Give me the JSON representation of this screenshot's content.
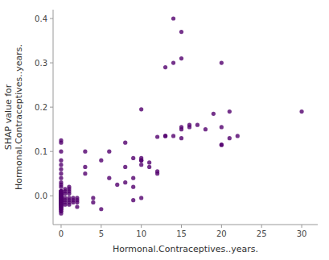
{
  "chart_data": {
    "type": "scatter",
    "xlabel": "Hormonal.Contraceptives..years.",
    "ylabel": "SHAP value for\nHormonal.Contraceptives..years.",
    "color": "#52006e",
    "xlim": [
      -1,
      32
    ],
    "ylim": [
      -0.065,
      0.42
    ],
    "xticks": [
      0,
      5,
      10,
      15,
      20,
      25,
      30
    ],
    "yticks": [
      {
        "value": 0.0,
        "label": "0.0"
      },
      0.1,
      0.2,
      0.3,
      0.4
    ],
    "x": [
      0,
      0,
      0,
      0,
      0,
      0,
      0,
      0,
      0,
      0,
      0,
      0,
      0,
      0,
      0,
      0,
      0,
      0,
      0,
      0,
      0,
      0,
      0,
      0,
      0,
      0,
      0,
      0,
      0,
      0,
      0,
      0,
      0,
      0,
      0,
      0,
      0,
      0,
      0,
      0,
      0,
      0,
      0,
      0,
      0,
      0,
      0,
      0,
      0,
      0,
      0,
      0,
      0,
      0,
      0,
      0,
      0,
      0,
      0,
      0,
      0,
      0,
      0,
      0,
      0,
      0,
      0,
      0,
      0,
      0,
      0,
      0,
      0,
      0,
      0,
      0,
      0,
      0,
      0.5,
      0.5,
      0.5,
      0.5,
      0.5,
      0.5,
      0.5,
      1,
      1,
      1,
      1,
      1,
      1,
      1,
      1,
      1.5,
      1.5,
      1.5,
      2,
      2,
      2,
      2,
      3,
      3,
      3,
      4,
      4,
      5,
      5,
      6,
      6,
      7,
      8,
      8,
      8,
      9,
      9,
      9,
      9,
      10,
      10,
      10,
      10,
      10,
      10,
      11,
      11,
      12,
      12,
      12,
      13,
      13,
      13,
      14,
      14,
      14,
      15,
      15,
      15,
      15,
      15,
      16,
      16,
      17,
      18,
      19,
      20,
      20,
      20,
      20,
      21,
      21,
      22,
      30
    ],
    "values": [
      0.0,
      0.0,
      0.0,
      0.0,
      0.0,
      0.0,
      0.0,
      0.0,
      0.0,
      0.0,
      0.0,
      0.0,
      0.0,
      0.0,
      0.0,
      -0.005,
      -0.005,
      -0.005,
      -0.005,
      -0.005,
      -0.005,
      -0.005,
      -0.005,
      -0.005,
      -0.005,
      -0.01,
      -0.01,
      -0.01,
      -0.01,
      -0.01,
      -0.01,
      -0.01,
      -0.01,
      -0.01,
      -0.01,
      -0.015,
      -0.015,
      -0.015,
      -0.015,
      -0.015,
      -0.015,
      -0.015,
      -0.015,
      -0.02,
      -0.02,
      -0.02,
      -0.02,
      -0.02,
      -0.025,
      -0.025,
      -0.025,
      -0.025,
      -0.03,
      -0.03,
      -0.03,
      -0.035,
      -0.035,
      -0.04,
      0.005,
      0.005,
      0.005,
      0.005,
      0.005,
      0.01,
      0.01,
      0.01,
      0.01,
      0.02,
      0.025,
      0.03,
      0.04,
      0.05,
      0.06,
      0.07,
      0.08,
      0.1,
      0.12,
      0.125,
      -0.005,
      -0.01,
      -0.015,
      -0.02,
      0.005,
      0.01,
      0.015,
      -0.005,
      -0.01,
      -0.015,
      -0.02,
      0.005,
      0.01,
      0.015,
      0.02,
      -0.005,
      -0.01,
      -0.015,
      -0.005,
      -0.01,
      -0.015,
      -0.025,
      0.1,
      0.05,
      0.065,
      -0.005,
      -0.015,
      0.08,
      -0.03,
      0.1,
      0.04,
      0.025,
      0.12,
      0.065,
      0.03,
      0.085,
      0.04,
      0.02,
      -0.01,
      0.195,
      0.08,
      0.085,
      -0.005,
      0.08,
      0.07,
      0.065,
      0.075,
      0.133,
      0.05,
      0.055,
      0.29,
      0.135,
      0.135,
      0.4,
      0.3,
      0.135,
      0.37,
      0.31,
      0.155,
      0.15,
      0.13,
      0.155,
      0.16,
      0.16,
      0.15,
      0.185,
      0.155,
      0.3,
      0.115,
      0.115,
      0.13,
      0.19,
      0.135,
      0.19
    ]
  }
}
